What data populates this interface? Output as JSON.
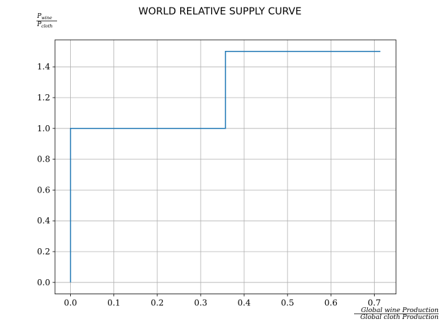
{
  "chart_data": {
    "type": "line",
    "title": "WORLD RELATIVE SUPPLY CURVE",
    "ylabel": {
      "numerator": "P_wine",
      "denominator": "P_cloth"
    },
    "xlabel": {
      "numerator": "Global wine Production",
      "denominator": "Global cloth Production"
    },
    "xlim": [
      -0.0357,
      0.75
    ],
    "ylim": [
      -0.075,
      1.575
    ],
    "grid": true,
    "x_ticks": [
      "0.0",
      "0.1",
      "0.2",
      "0.3",
      "0.4",
      "0.5",
      "0.6",
      "0.7"
    ],
    "y_ticks": [
      "0.0",
      "0.2",
      "0.4",
      "0.6",
      "0.8",
      "1.0",
      "1.2",
      "1.4"
    ],
    "line_color": "#1f77b4",
    "series": [
      {
        "x": [
          0.0,
          0.0,
          0.357,
          0.357,
          0.714
        ],
        "y": [
          0.0,
          1.0,
          1.0,
          1.5,
          1.5
        ]
      }
    ]
  }
}
